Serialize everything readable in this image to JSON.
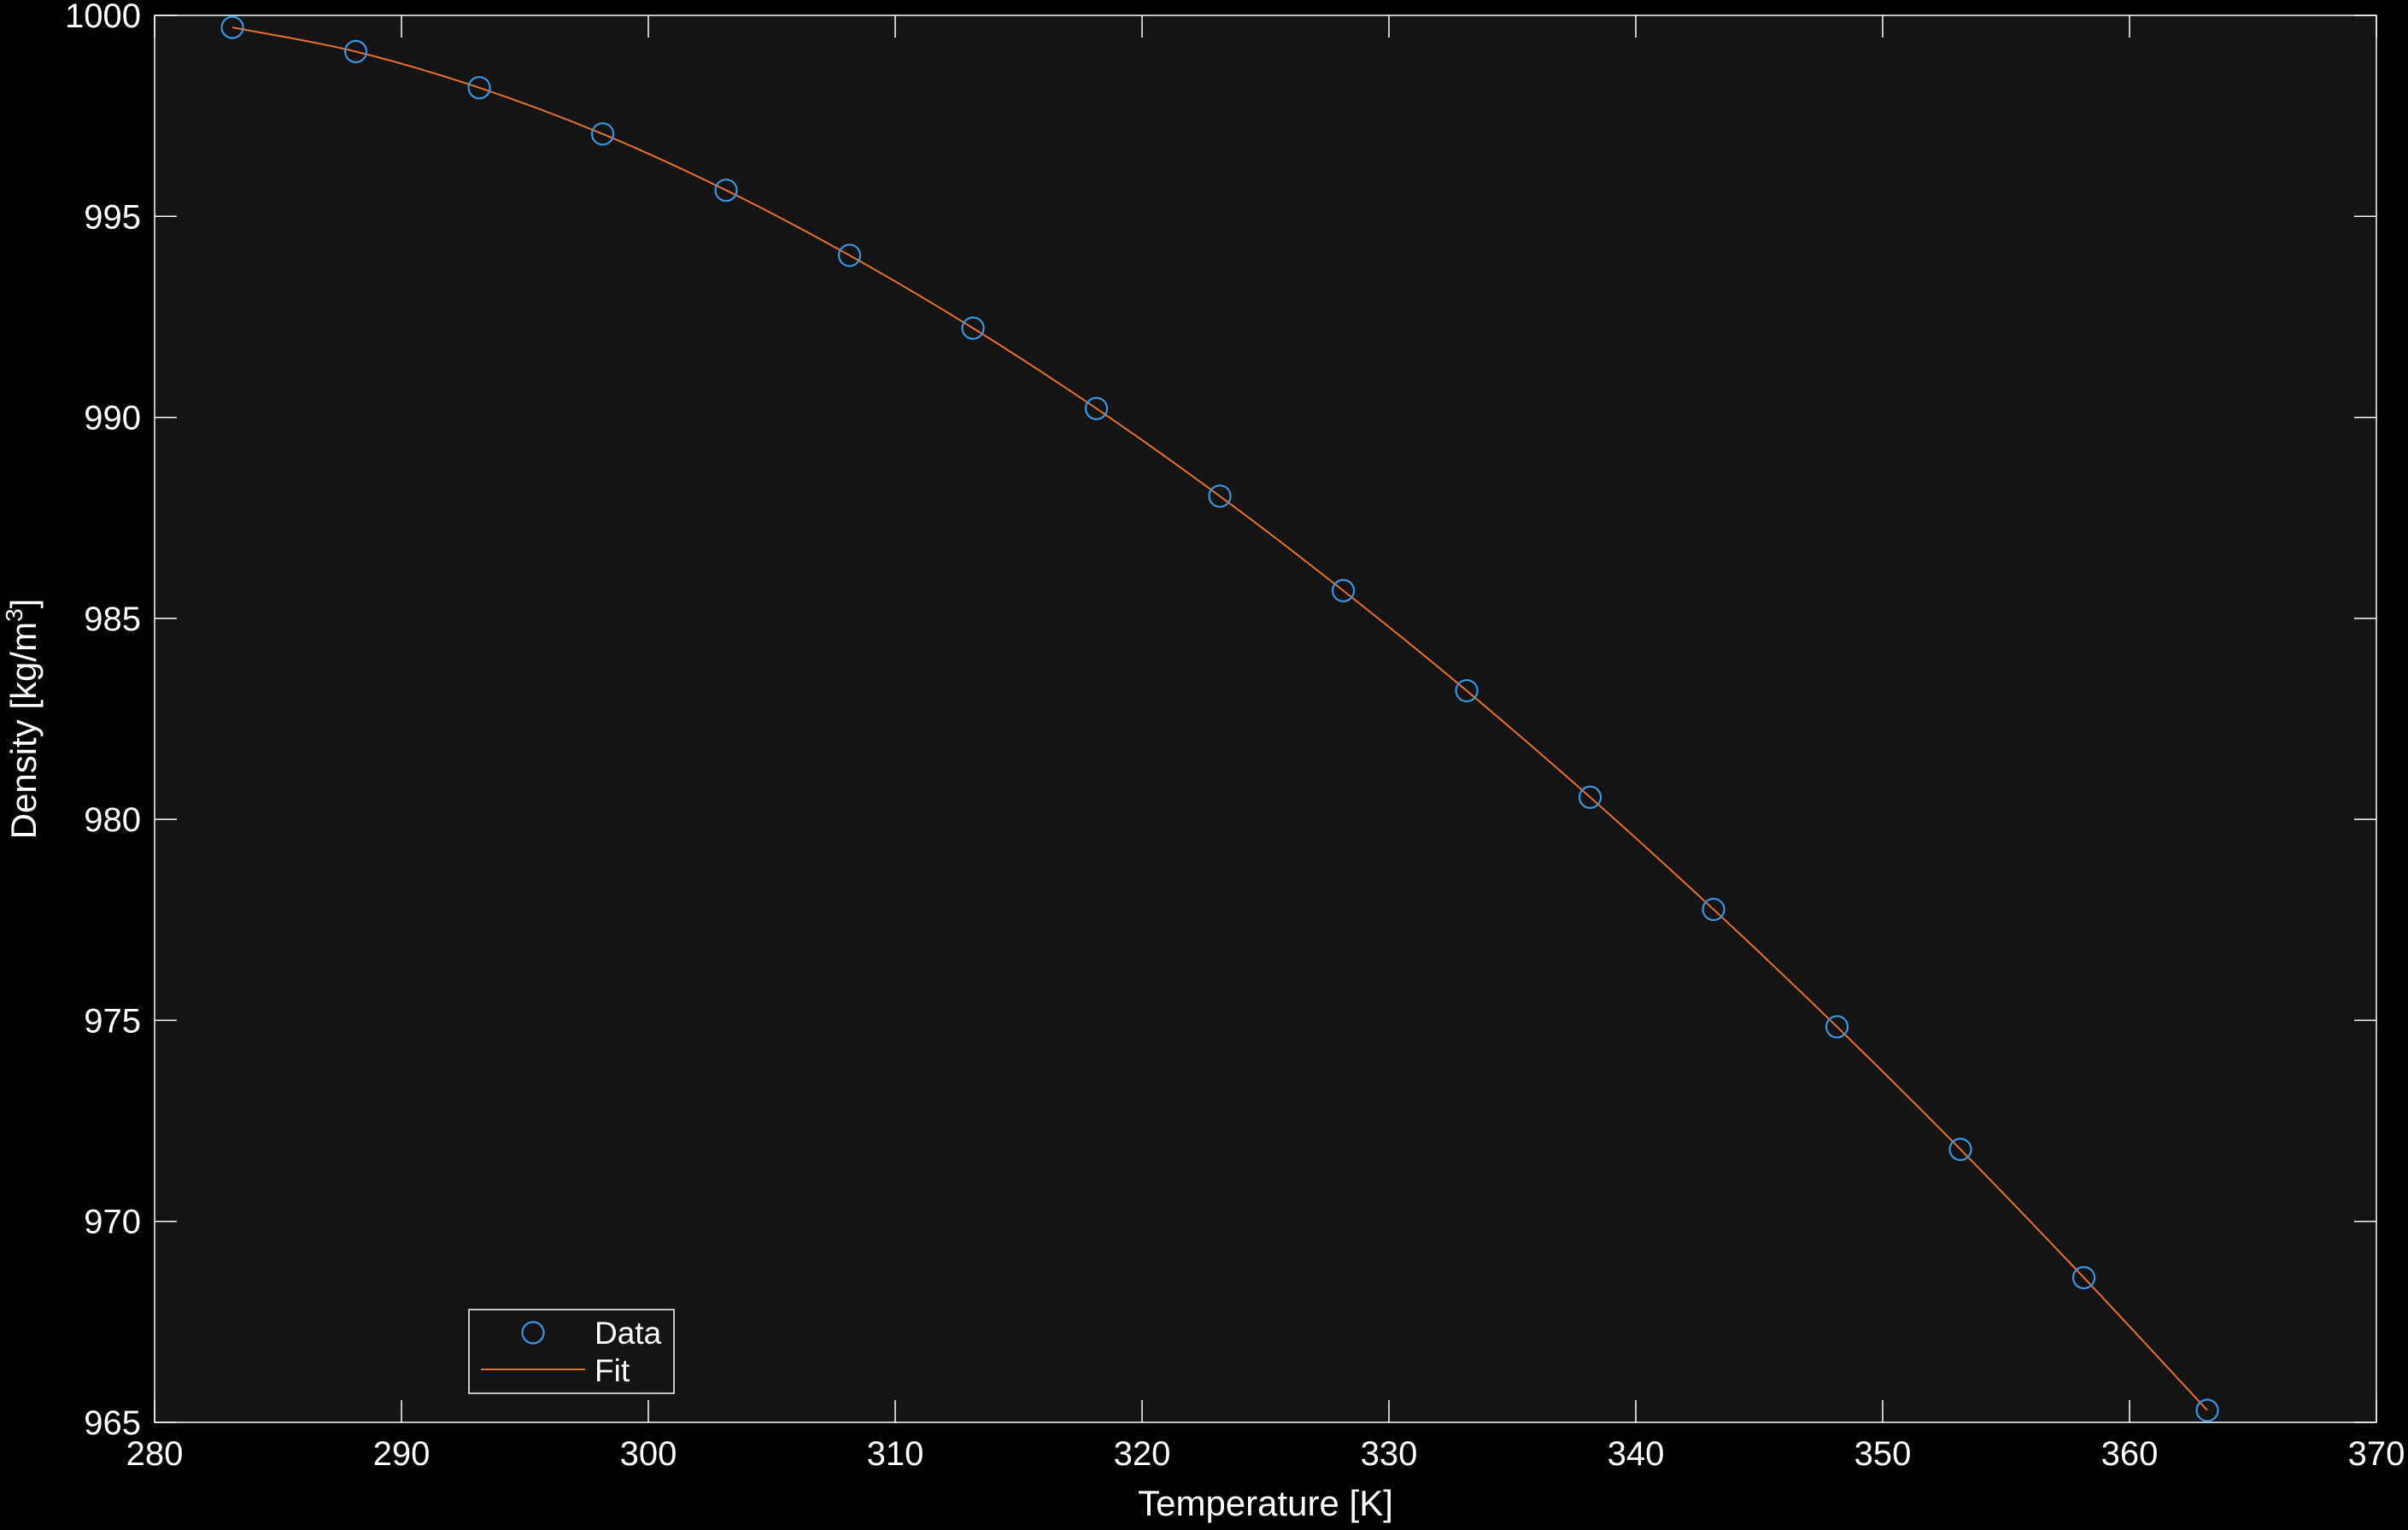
{
  "chart_data": {
    "type": "scatter",
    "title": "",
    "xlabel": "Temperature [K]",
    "ylabel_main": "Density  [kg/m",
    "ylabel_sup": "3",
    "ylabel_close": "]",
    "xlim": [
      280,
      370
    ],
    "ylim": [
      965,
      1000
    ],
    "xticks": [
      280,
      290,
      300,
      310,
      320,
      330,
      340,
      350,
      360,
      370
    ],
    "yticks": [
      965,
      970,
      975,
      980,
      985,
      990,
      995,
      1000
    ],
    "grid": false,
    "legend_position": "bottom-left",
    "series": [
      {
        "name": "Data",
        "kind": "markers",
        "marker": "circle",
        "color": "#3a96e0",
        "x": [
          283.15,
          288.15,
          293.15,
          298.15,
          303.15,
          308.15,
          313.15,
          318.15,
          323.15,
          328.15,
          333.15,
          338.15,
          343.15,
          348.15,
          353.15,
          358.15,
          363.15
        ],
        "y": [
          999.7,
          999.1,
          998.2,
          997.05,
          995.65,
          994.03,
          992.22,
          990.22,
          988.04,
          985.69,
          983.2,
          980.55,
          977.76,
          974.84,
          971.79,
          968.6,
          965.3
        ]
      },
      {
        "name": "Fit",
        "kind": "line",
        "color": "#e8702a",
        "x": [
          283.15,
          288.15,
          293.15,
          298.15,
          303.15,
          308.15,
          313.15,
          318.15,
          323.15,
          328.15,
          333.15,
          338.15,
          343.15,
          348.15,
          353.15,
          358.15,
          363.15
        ],
        "y": [
          999.7,
          999.1,
          998.2,
          997.05,
          995.65,
          994.03,
          992.22,
          990.22,
          988.04,
          985.69,
          983.2,
          980.55,
          977.76,
          974.84,
          971.79,
          968.6,
          965.3
        ]
      }
    ]
  },
  "colors": {
    "figure_background": "#000000",
    "axes_background": "#141414",
    "axes_edge": "#ffffff",
    "text": "#ffffff"
  }
}
